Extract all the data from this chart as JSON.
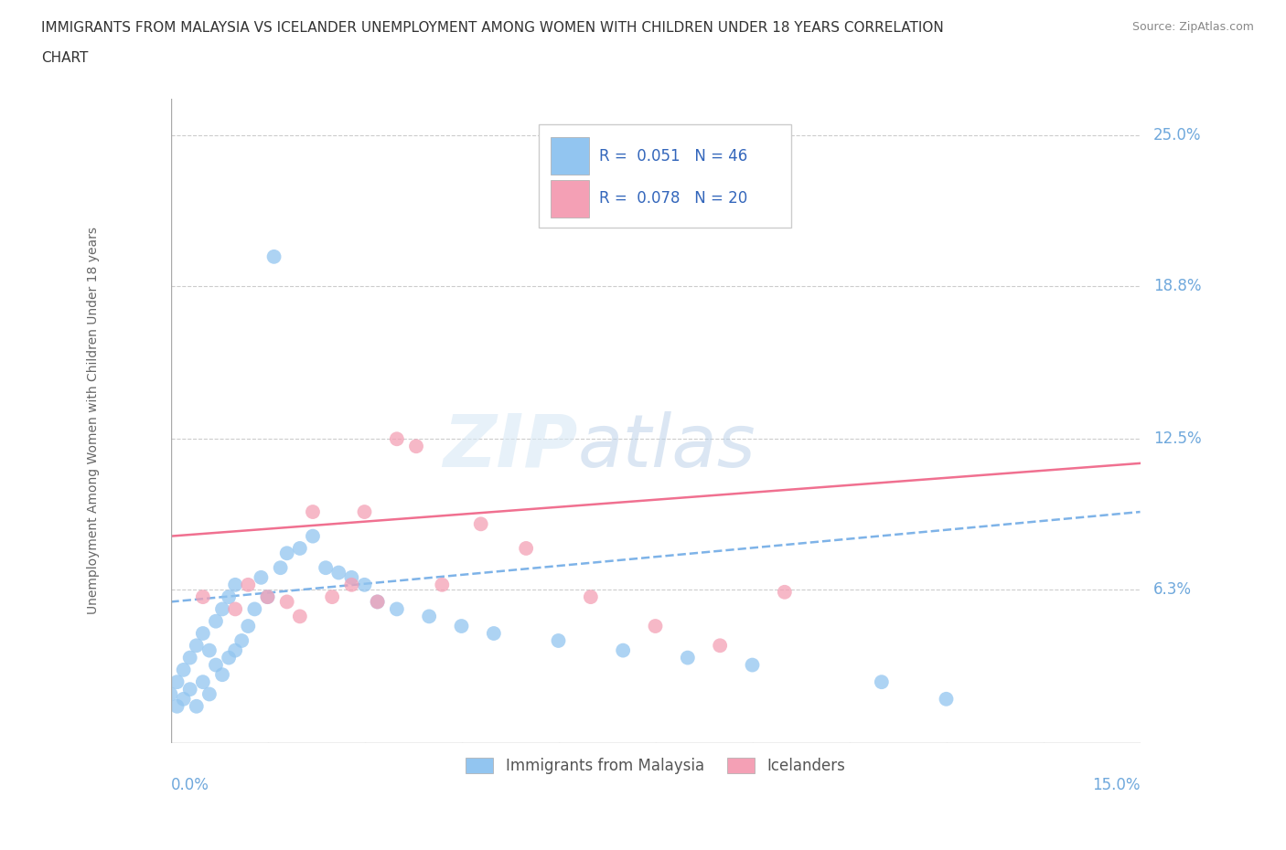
{
  "title_line1": "IMMIGRANTS FROM MALAYSIA VS ICELANDER UNEMPLOYMENT AMONG WOMEN WITH CHILDREN UNDER 18 YEARS CORRELATION",
  "title_line2": "CHART",
  "source": "Source: ZipAtlas.com",
  "ylabel": "Unemployment Among Women with Children Under 18 years",
  "xmin": 0.0,
  "xmax": 0.15,
  "ymin": 0.0,
  "ymax": 0.265,
  "color_blue": "#92C5F0",
  "color_pink": "#F4A0B5",
  "color_blue_line": "#7EB3E8",
  "color_pink_line": "#F07090",
  "color_tick": "#6FA8DC",
  "blue_x": [
    0.0,
    0.001,
    0.001,
    0.002,
    0.002,
    0.003,
    0.003,
    0.004,
    0.004,
    0.005,
    0.005,
    0.006,
    0.006,
    0.007,
    0.007,
    0.008,
    0.008,
    0.009,
    0.009,
    0.01,
    0.01,
    0.011,
    0.012,
    0.013,
    0.014,
    0.015,
    0.017,
    0.018,
    0.02,
    0.022,
    0.024,
    0.026,
    0.028,
    0.03,
    0.032,
    0.035,
    0.04,
    0.045,
    0.05,
    0.06,
    0.07,
    0.08,
    0.09,
    0.11,
    0.12,
    0.016
  ],
  "blue_y": [
    0.02,
    0.015,
    0.025,
    0.018,
    0.03,
    0.022,
    0.035,
    0.015,
    0.04,
    0.025,
    0.045,
    0.02,
    0.038,
    0.032,
    0.05,
    0.028,
    0.055,
    0.035,
    0.06,
    0.038,
    0.065,
    0.042,
    0.048,
    0.055,
    0.068,
    0.06,
    0.072,
    0.078,
    0.08,
    0.085,
    0.072,
    0.07,
    0.068,
    0.065,
    0.058,
    0.055,
    0.052,
    0.048,
    0.045,
    0.042,
    0.038,
    0.035,
    0.032,
    0.025,
    0.018,
    0.2
  ],
  "pink_x": [
    0.005,
    0.01,
    0.012,
    0.015,
    0.018,
    0.02,
    0.022,
    0.025,
    0.028,
    0.03,
    0.032,
    0.035,
    0.038,
    0.042,
    0.048,
    0.055,
    0.065,
    0.075,
    0.085,
    0.095
  ],
  "pink_y": [
    0.06,
    0.055,
    0.065,
    0.06,
    0.058,
    0.052,
    0.095,
    0.06,
    0.065,
    0.095,
    0.058,
    0.125,
    0.122,
    0.065,
    0.09,
    0.08,
    0.06,
    0.048,
    0.04,
    0.062
  ],
  "pink_line_start_y": 0.085,
  "pink_line_end_y": 0.115,
  "blue_line_start_y": 0.058,
  "blue_line_end_y": 0.095,
  "ytick_vals": [
    0.063,
    0.125,
    0.188,
    0.25
  ],
  "ytick_labels": [
    "6.3%",
    "12.5%",
    "18.8%",
    "25.0%"
  ]
}
